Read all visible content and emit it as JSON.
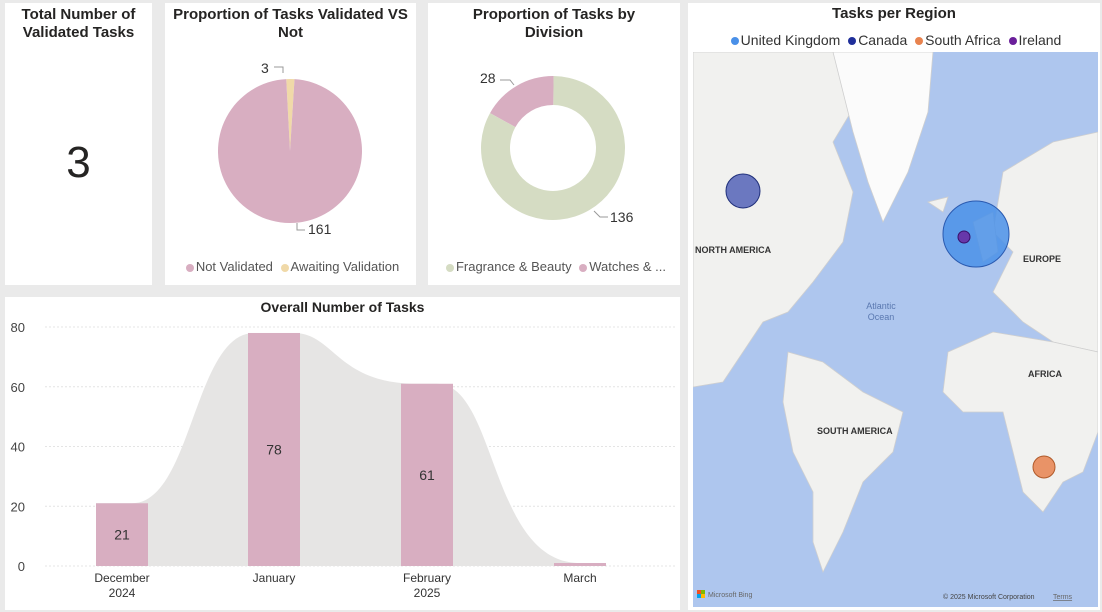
{
  "kpi": {
    "title": "Total Number of Validated Tasks",
    "value": "3"
  },
  "pie_validated": {
    "title": "Proportion of Tasks Validated VS Not",
    "legend": [
      {
        "label": "Not Validated",
        "color": "#d8aec1"
      },
      {
        "label": "Awaiting Validation",
        "color": "#f0d9a8"
      }
    ],
    "labels": {
      "small": "3",
      "large": "161"
    }
  },
  "donut_division": {
    "title": "Proportion of Tasks by Division",
    "legend": [
      {
        "label": "Fragrance & Beauty",
        "color": "#d5dcc3"
      },
      {
        "label": "Watches & ...",
        "color": "#d8aec1"
      }
    ],
    "labels": {
      "small": "28",
      "large": "136"
    }
  },
  "map": {
    "title": "Tasks per Region",
    "legend": [
      {
        "label": "United Kingdom",
        "color": "#4a90e8"
      },
      {
        "label": "Canada",
        "color": "#1f2f9a"
      },
      {
        "label": "South Africa",
        "color": "#e8834f"
      },
      {
        "label": "Ireland",
        "color": "#6a1f9a"
      }
    ],
    "place_labels": {
      "north_america": "NORTH AMERICA",
      "europe": "EUROPE",
      "africa": "AFRICA",
      "south_america": "SOUTH AMERICA",
      "ocean_1": "Atlantic",
      "ocean_2": "Ocean"
    },
    "attribution": "Microsoft Bing",
    "copyright": "© 2025 Microsoft Corporation",
    "terms": "Terms"
  },
  "chart_data": [
    {
      "type": "pie",
      "title": "Proportion of Tasks Validated VS Not",
      "categories": [
        "Not Validated",
        "Awaiting Validation"
      ],
      "values": [
        161,
        3
      ]
    },
    {
      "type": "pie",
      "title": "Proportion of Tasks by Division",
      "categories": [
        "Fragrance & Beauty",
        "Watches & ..."
      ],
      "values": [
        136,
        28
      ],
      "donut": true
    },
    {
      "type": "bar",
      "title": "Overall Number of Tasks",
      "categories": [
        "December 2024",
        "January 2025",
        "February 2025",
        "March 2025"
      ],
      "tick_labels": [
        [
          "December",
          "2024"
        ],
        [
          "January",
          ""
        ],
        [
          "February",
          "2025"
        ],
        [
          "March",
          ""
        ]
      ],
      "values": [
        21,
        78,
        61,
        1
      ],
      "data_labels": [
        "21",
        "78",
        "61",
        ""
      ],
      "yticks": [
        "0",
        "20",
        "40",
        "60",
        "80"
      ],
      "ylim": [
        0,
        80
      ],
      "grid": true,
      "bar_color": "#d8aec1",
      "area_color": "#e6e5e4"
    }
  ]
}
